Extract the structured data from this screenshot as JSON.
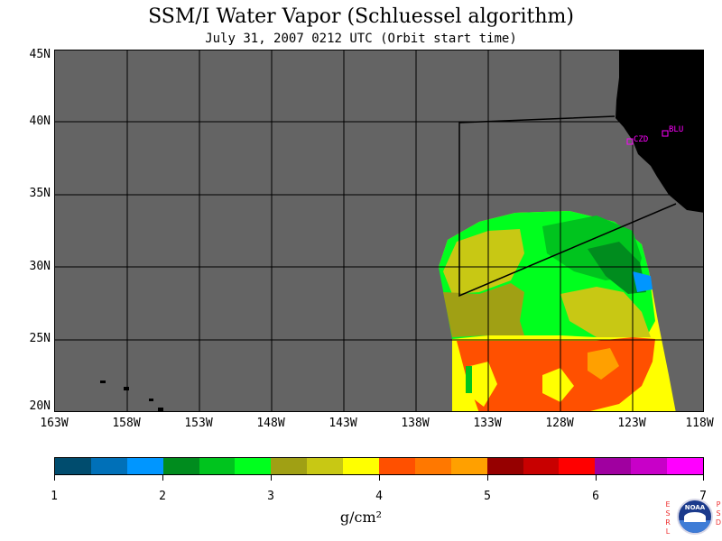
{
  "title": "SSM/I Water Vapor (Schluessel algorithm)",
  "subtitle": "July 31, 2007  0212 UTC  (Orbit start time)",
  "map": {
    "lat_labels": [
      "45N",
      "40N",
      "35N",
      "30N",
      "25N",
      "20N"
    ],
    "lon_labels": [
      "163W",
      "158W",
      "153W",
      "148W",
      "143W",
      "138W",
      "133W",
      "128W",
      "123W",
      "118W"
    ],
    "stations": [
      "CZD",
      "BLU"
    ],
    "colors": {
      "background": "#646464",
      "land": "#000000",
      "station": "#ff00ff"
    }
  },
  "colorbar": {
    "labels": [
      "1",
      "2",
      "3",
      "4",
      "5",
      "6",
      "7"
    ],
    "unit": "g/cm²",
    "swatches": [
      "#004c6e",
      "#0070b8",
      "#0096ff",
      "#008c1e",
      "#00c41e",
      "#00ff1e",
      "#a0a014",
      "#c8c814",
      "#ffff00",
      "#ff5000",
      "#ff7800",
      "#ffa000",
      "#960000",
      "#c80000",
      "#ff0000",
      "#a000a0",
      "#c800c8",
      "#ff00ff"
    ]
  },
  "logo": {
    "name": "NOAA",
    "left_text": "ESRL",
    "right_text": "PSD"
  }
}
